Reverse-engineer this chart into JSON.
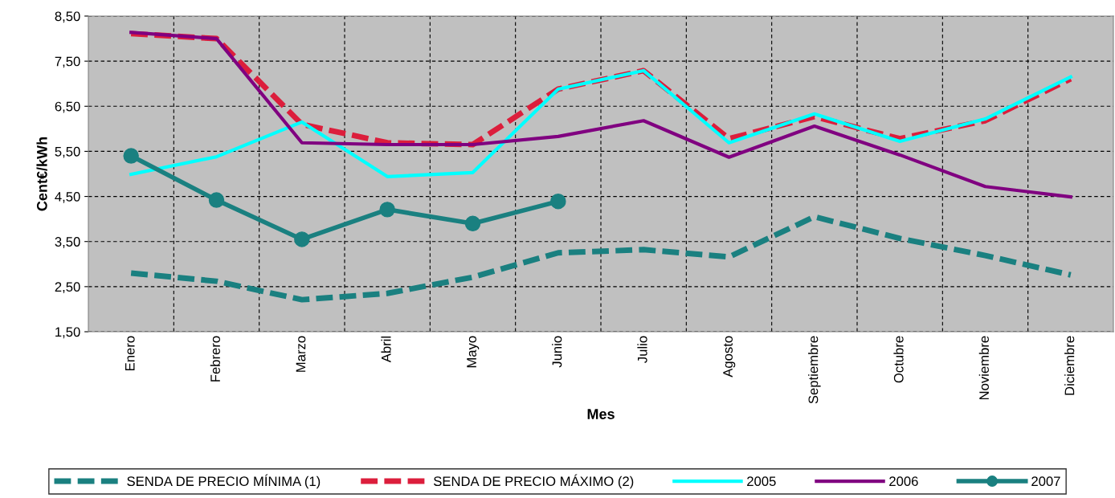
{
  "chart_data": {
    "type": "line",
    "xlabel": "Mes",
    "ylabel": "Cent€/kWh",
    "categories": [
      "Enero",
      "Febrero",
      "Marzo",
      "Abril",
      "Mayo",
      "Junio",
      "Julio",
      "Agosto",
      "Septiembre",
      "Octubre",
      "Noviembre",
      "Diciembre"
    ],
    "ylim": [
      1.5,
      8.5
    ],
    "yticks": [
      {
        "value": 1.5,
        "label": "1,50"
      },
      {
        "value": 2.5,
        "label": "2,50"
      },
      {
        "value": 3.5,
        "label": "3,50"
      },
      {
        "value": 4.5,
        "label": "4,50"
      },
      {
        "value": 5.5,
        "label": "5,50"
      },
      {
        "value": 6.5,
        "label": "6,50"
      },
      {
        "value": 7.5,
        "label": "7,50"
      },
      {
        "value": 8.5,
        "label": "8,50"
      }
    ],
    "grid": true,
    "legend": "bottom",
    "series": [
      {
        "name": "SENDA DE PRECIO MÍNIMA (1)",
        "color": "#1a8080",
        "line_style": "dashed",
        "marker": "none",
        "values": [
          2.8,
          2.62,
          2.21,
          2.35,
          2.71,
          3.25,
          3.32,
          3.16,
          4.05,
          3.57,
          3.19,
          2.76
        ]
      },
      {
        "name": "SENDA DE PRECIO MÁXIMO (2)",
        "color": "#dc1e3c",
        "line_style": "dashed",
        "marker": "none",
        "values": [
          8.11,
          8.0,
          6.1,
          5.69,
          5.65,
          6.88,
          7.29,
          5.78,
          6.27,
          5.78,
          6.18,
          7.11
        ]
      },
      {
        "name": "2005",
        "color": "#00ffff",
        "line_style": "solid",
        "marker": "none",
        "values": [
          4.99,
          5.38,
          6.15,
          4.94,
          5.03,
          6.88,
          7.29,
          5.69,
          6.33,
          5.72,
          6.22,
          7.15
        ]
      },
      {
        "name": "2006",
        "color": "#800080",
        "line_style": "solid",
        "marker": "none",
        "values": [
          8.14,
          8.0,
          5.69,
          5.65,
          5.65,
          5.83,
          6.18,
          5.37,
          6.06,
          5.42,
          4.72,
          4.49
        ]
      },
      {
        "name": "2007",
        "color": "#1a8080",
        "line_style": "solid",
        "marker": "circle",
        "values": [
          5.4,
          4.42,
          3.55,
          4.21,
          3.9,
          4.39,
          null,
          null,
          null,
          null,
          null,
          null
        ]
      }
    ]
  }
}
